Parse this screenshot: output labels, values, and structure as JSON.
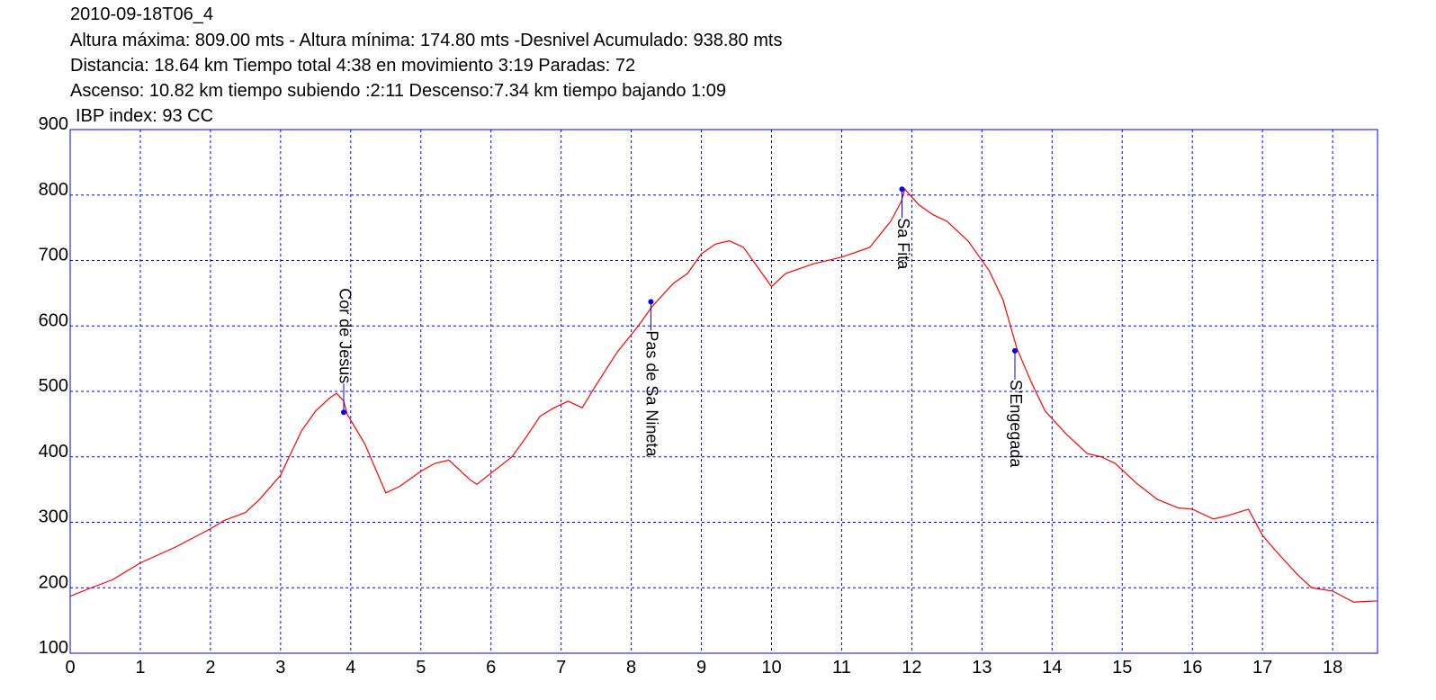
{
  "chart_data": {
    "type": "line",
    "title": "2010-09-18T06_4",
    "subtitle_lines": [
      "Altura máxima: 809.00 mts - Altura mínima: 174.80 mts -Desnivel Acumulado: 938.80 mts",
      "Distancia: 18.64 km  Tiempo total 4:38  en movimiento 3:19 Paradas: 72",
      "Ascenso: 10.82 km  tiempo subiendo :2:11  Descenso:7.34 km tiempo bajando 1:09"
    ],
    "annotation": "IBP index: 93 CC",
    "x": [
      0,
      0.3,
      0.6,
      1.0,
      1.5,
      2.0,
      2.2,
      2.5,
      2.7,
      3.0,
      3.1,
      3.3,
      3.5,
      3.7,
      3.8,
      3.9,
      3.95,
      4.2,
      4.4,
      4.5,
      4.7,
      5.0,
      5.2,
      5.4,
      5.5,
      5.7,
      5.8,
      6.0,
      6.3,
      6.5,
      6.7,
      6.9,
      7.1,
      7.3,
      7.5,
      7.8,
      8.1,
      8.3,
      8.6,
      8.8,
      9.0,
      9.2,
      9.4,
      9.6,
      9.8,
      10.0,
      10.2,
      10.6,
      11.0,
      11.4,
      11.7,
      11.85,
      11.9,
      12.1,
      12.3,
      12.5,
      12.8,
      13.1,
      13.3,
      13.5,
      13.7,
      13.9,
      14.2,
      14.5,
      14.7,
      14.9,
      15.2,
      15.5,
      15.8,
      16.0,
      16.3,
      16.5,
      16.8,
      17.0,
      17.2,
      17.5,
      17.7,
      18.0,
      18.3,
      18.64
    ],
    "values": [
      187,
      200,
      212,
      238,
      262,
      290,
      303,
      315,
      335,
      372,
      395,
      440,
      470,
      490,
      497,
      485,
      465,
      420,
      370,
      345,
      355,
      378,
      390,
      395,
      385,
      365,
      358,
      375,
      400,
      430,
      462,
      475,
      485,
      475,
      510,
      560,
      600,
      630,
      665,
      680,
      710,
      725,
      730,
      720,
      690,
      660,
      680,
      695,
      705,
      720,
      760,
      790,
      809,
      785,
      770,
      760,
      730,
      685,
      640,
      565,
      515,
      470,
      435,
      405,
      400,
      390,
      360,
      335,
      322,
      320,
      305,
      310,
      320,
      280,
      255,
      220,
      200,
      195,
      178,
      180
    ],
    "color": "#ff0000",
    "waypoints": [
      {
        "name": "Cor de Jesus",
        "x": 3.9,
        "y": 468,
        "label_side": "above"
      },
      {
        "name": "Pas de Sa Nineta",
        "x": 8.28,
        "y": 637,
        "label_side": "below"
      },
      {
        "name": "Sa Fita",
        "x": 11.86,
        "y": 809,
        "label_side": "below"
      },
      {
        "name": "S'Engegada",
        "x": 13.47,
        "y": 562,
        "label_side": "below"
      }
    ],
    "waypoint_color": "#0000ff",
    "xlim": [
      0,
      18.64
    ],
    "ylim": [
      100,
      900
    ],
    "xticks": [
      0,
      1,
      2,
      3,
      4,
      5,
      6,
      7,
      8,
      9,
      10,
      11,
      12,
      13,
      14,
      15,
      16,
      17,
      18
    ],
    "yticks": [
      100,
      200,
      300,
      400,
      500,
      600,
      700,
      800,
      900
    ],
    "grid": true,
    "grid_color": "#0000ff"
  }
}
